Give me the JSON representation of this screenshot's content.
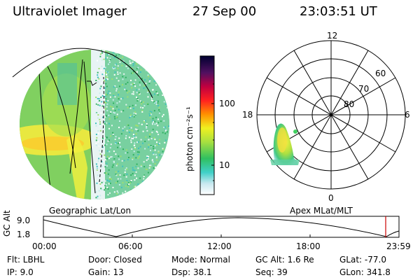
{
  "header": {
    "instrument": "Ultraviolet Imager",
    "date": "27 Sep 00",
    "time": "23:03:51 UT"
  },
  "left_panel": {
    "caption": "Geographic Lat/Lon"
  },
  "right_panel": {
    "caption": "Apex MLat/MLT",
    "mlt_labels": {
      "top": "12",
      "left": "18",
      "right": "6",
      "bottom": "0"
    },
    "mlat_labels": [
      "60",
      "70",
      "80"
    ]
  },
  "colorbar": {
    "label": "photon cm⁻²s⁻¹",
    "ticks": [
      "100",
      "10"
    ]
  },
  "altitude_plot": {
    "ylabel": "GC Alt",
    "yticks": [
      "9.0",
      "1.8"
    ],
    "xticks": [
      "00:00",
      "06:00",
      "12:00",
      "18:00",
      "23:59"
    ],
    "marker_color": "#cc0000"
  },
  "info": {
    "flt": "Flt: LBHL",
    "ip": "IP:  9.0",
    "door": "Door: Closed",
    "gain": "Gain: 13",
    "mode": "Mode: Normal",
    "dsp": "Dsp:   38.1",
    "gc_alt": "GC Alt: 1.6 Re",
    "seq": "Seq: 39",
    "glat": "GLat: -77.0",
    "glon": "GLon: 341.8"
  }
}
